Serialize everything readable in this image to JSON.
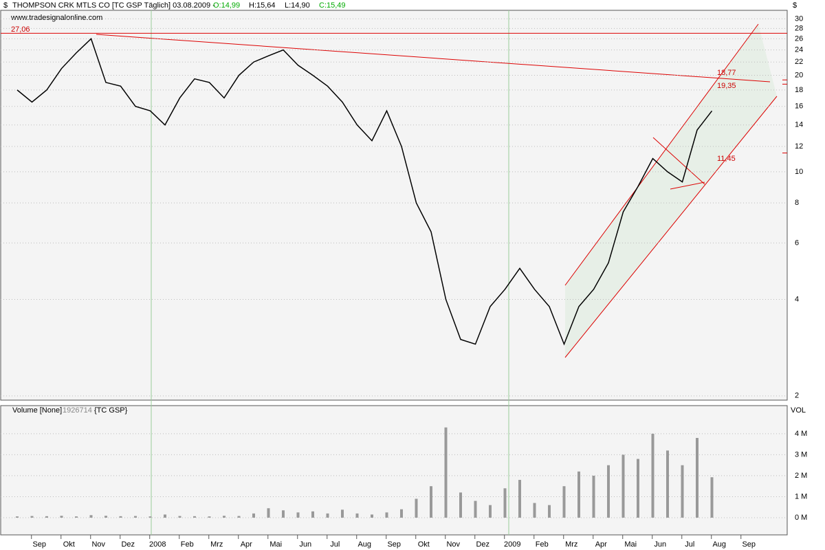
{
  "chart_data": [
    {
      "type": "line",
      "title": "THOMPSON CRK MTLS CO [TC GSP  Täglich] 03.08.2009 -",
      "ohlc": [
        "O:14,99",
        "H:15,64",
        "L:14,90",
        "C:15,49"
      ],
      "subtitle": "www.tradesignalonline.com",
      "y_label": "$",
      "color": "#000000",
      "log_scale": true,
      "grid": true,
      "categories": [
        null,
        "Sep",
        null,
        "Okt",
        null,
        "Nov",
        null,
        "Dez",
        null,
        "2008",
        null,
        "Feb",
        null,
        "Mrz",
        null,
        "Apr",
        null,
        "Mai",
        null,
        "Jun",
        null,
        "Jul",
        null,
        "Aug",
        null,
        "Sep",
        null,
        "Okt",
        null,
        "Nov",
        null,
        "Dez",
        null,
        "2009",
        null,
        "Feb",
        null,
        "Mrz",
        null,
        "Apr",
        null,
        "Mai",
        null,
        "Jun",
        null,
        "Jul",
        null,
        "Aug",
        null,
        "Sep",
        null
      ],
      "values": [
        18,
        16.5,
        18,
        21,
        23.5,
        26,
        19,
        18.5,
        16,
        15.5,
        14,
        17,
        19.5,
        19,
        17,
        20,
        22,
        23,
        24,
        21.5,
        20,
        18.5,
        16.5,
        14,
        12.5,
        15.5,
        12,
        8,
        6.5,
        4,
        3,
        2.9,
        3.8,
        4.3,
        5,
        4.3,
        3.8,
        2.9,
        3.8,
        4.3,
        5.2,
        7.5,
        9,
        11,
        10,
        9.3,
        13.5,
        15.49,
        null,
        null,
        null
      ],
      "ylim": [
        1.94,
        31.9
      ],
      "yticks": [
        2,
        4,
        6,
        8,
        10,
        12,
        14,
        16,
        18,
        20,
        22,
        24,
        26,
        28,
        30
      ],
      "annotations": [
        {
          "value": 27.06,
          "label": "27,06"
        },
        {
          "value": 18.77,
          "label": "18,77"
        },
        {
          "value": 19.35,
          "label": "19,35"
        },
        {
          "value": 11.45,
          "label": "11,45"
        }
      ]
    },
    {
      "type": "bar",
      "title": "Volume [None]",
      "last_value": 1926714,
      "symbol": "{TC GSP}",
      "y_label": "VOL",
      "color": "#999999",
      "grid": true,
      "values": [
        60000,
        80000,
        70000,
        90000,
        60000,
        120000,
        90000,
        70000,
        80000,
        60000,
        150000,
        80000,
        70000,
        60000,
        90000,
        80000,
        200000,
        450000,
        350000,
        250000,
        300000,
        200000,
        380000,
        200000,
        150000,
        250000,
        400000,
        900000,
        1500000,
        4300000,
        1200000,
        800000,
        600000,
        1400000,
        1800000,
        700000,
        600000,
        1500000,
        2200000,
        2000000,
        2500000,
        3000000,
        2800000,
        4000000,
        3200000,
        2500000,
        3800000,
        1926714,
        null,
        null,
        null
      ],
      "ylim": [
        -820000,
        5340000
      ],
      "yticks": [
        {
          "value": 0,
          "label": "0 M"
        },
        {
          "value": 1000000,
          "label": "1 M"
        },
        {
          "value": 2000000,
          "label": "2 M"
        },
        {
          "value": 3000000,
          "label": "3 M"
        },
        {
          "value": 4000000,
          "label": "4 M"
        }
      ]
    }
  ]
}
